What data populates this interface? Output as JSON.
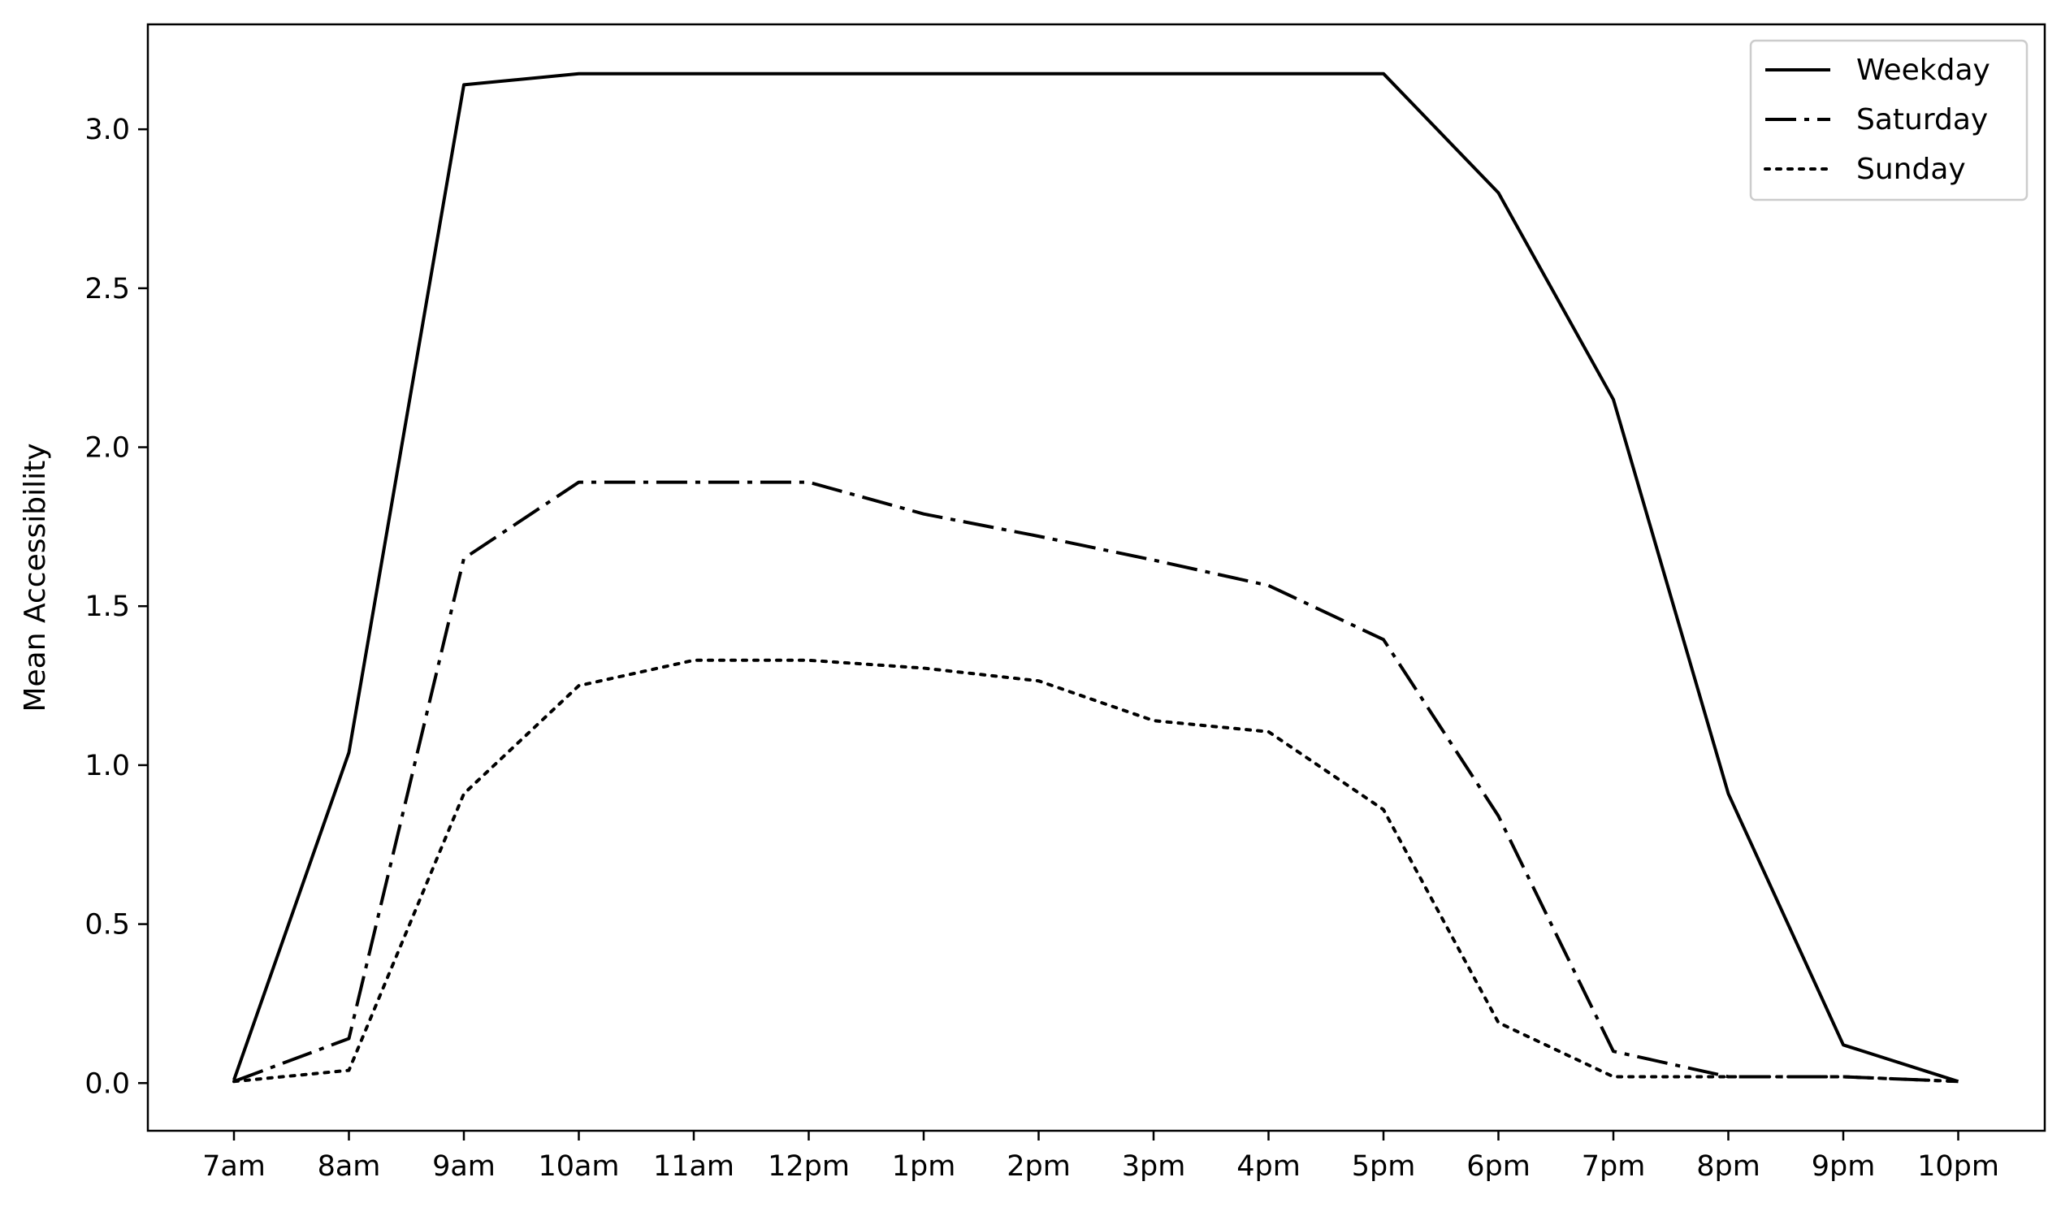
{
  "chart_data": {
    "type": "line",
    "title": "",
    "xlabel": "",
    "ylabel": "Mean Accessibility",
    "categories": [
      "7am",
      "8am",
      "9am",
      "10am",
      "11am",
      "12pm",
      "1pm",
      "2pm",
      "3pm",
      "4pm",
      "5pm",
      "6pm",
      "7pm",
      "8pm",
      "9pm",
      "10pm"
    ],
    "ylim": [
      -0.15,
      3.33
    ],
    "yticks": [
      0.0,
      0.5,
      1.0,
      1.5,
      2.0,
      2.5,
      3.0
    ],
    "ytick_labels": [
      "0.0",
      "0.5",
      "1.0",
      "1.5",
      "2.0",
      "2.5",
      "3.0"
    ],
    "grid": false,
    "legend_position": "top-right",
    "series": [
      {
        "name": "Weekday",
        "style": "solid",
        "color": "#000000",
        "values": [
          0.01,
          1.04,
          3.14,
          3.175,
          3.175,
          3.175,
          3.175,
          3.175,
          3.175,
          3.175,
          3.175,
          2.8,
          2.15,
          0.91,
          0.12,
          0.005
        ]
      },
      {
        "name": "Saturday",
        "style": "dashdot",
        "color": "#000000",
        "values": [
          0.005,
          0.14,
          1.65,
          1.89,
          1.89,
          1.89,
          1.79,
          1.72,
          1.645,
          1.565,
          1.395,
          0.84,
          0.1,
          0.02,
          0.02,
          0.005
        ]
      },
      {
        "name": "Sunday",
        "style": "dotted",
        "color": "#000000",
        "values": [
          0.005,
          0.04,
          0.91,
          1.25,
          1.33,
          1.33,
          1.305,
          1.265,
          1.14,
          1.105,
          0.86,
          0.19,
          0.02,
          0.02,
          0.02,
          0.005
        ]
      }
    ]
  }
}
